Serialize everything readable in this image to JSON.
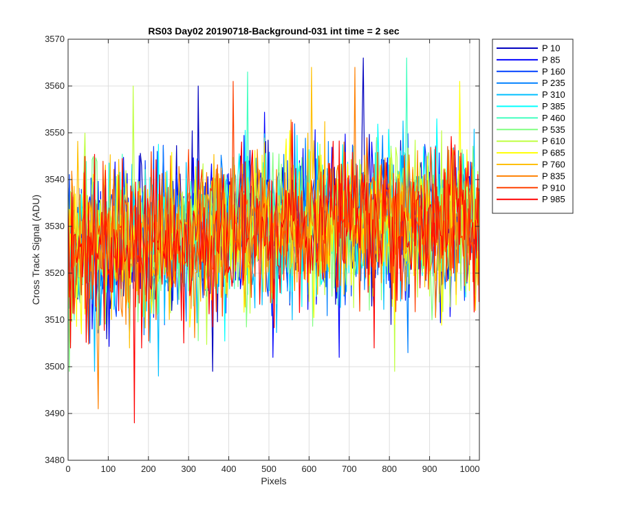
{
  "chart_data": {
    "type": "line",
    "title": "RS03 Day02 20190718-Background-031 int time = 2 sec",
    "xlabel": "Pixels",
    "ylabel": "Cross Track Signal (ADU)",
    "xlim": [
      0,
      1024
    ],
    "ylim": [
      3480,
      3570
    ],
    "xticks": [
      0,
      100,
      200,
      300,
      400,
      500,
      600,
      700,
      800,
      900,
      1000
    ],
    "yticks": [
      3480,
      3490,
      3500,
      3510,
      3520,
      3530,
      3540,
      3550,
      3560,
      3570
    ],
    "grid": true,
    "legend_position": "outside-top-right",
    "x_sampling": {
      "start": 0,
      "end": 1023,
      "step": 3
    },
    "series": [
      {
        "name": "P 10",
        "color": "#0000bf",
        "trend": [
          3525,
          3531,
          3532
        ],
        "spread": 8,
        "seed": 11,
        "extremes": [
          {
            "x": 360,
            "y": 3499
          },
          {
            "x": 325,
            "y": 3560
          },
          {
            "x": 735,
            "y": 3566
          }
        ]
      },
      {
        "name": "P 85",
        "color": "#0000ff",
        "trend": [
          3525,
          3530,
          3531
        ],
        "spread": 8,
        "seed": 23,
        "extremes": [
          {
            "x": 510,
            "y": 3502
          },
          {
            "x": 675,
            "y": 3502
          }
        ]
      },
      {
        "name": "P 160",
        "color": "#0040ff",
        "trend": [
          3526,
          3530,
          3531
        ],
        "spread": 8,
        "seed": 37,
        "extremes": [
          {
            "x": 55,
            "y": 3505
          }
        ]
      },
      {
        "name": "P 235",
        "color": "#0080ff",
        "trend": [
          3525,
          3531,
          3531
        ],
        "spread": 8,
        "seed": 41,
        "extremes": [
          {
            "x": 845,
            "y": 3503
          }
        ]
      },
      {
        "name": "P 310",
        "color": "#00bfff",
        "trend": [
          3524,
          3530,
          3531
        ],
        "spread": 8,
        "seed": 53,
        "extremes": [
          {
            "x": 225,
            "y": 3498
          },
          {
            "x": 65,
            "y": 3499
          }
        ]
      },
      {
        "name": "P 385",
        "color": "#00ffff",
        "trend": [
          3525,
          3530,
          3531
        ],
        "spread": 8,
        "seed": 67,
        "extremes": []
      },
      {
        "name": "P 460",
        "color": "#40ffbf",
        "trend": [
          3525,
          3531,
          3531
        ],
        "spread": 8,
        "seed": 71,
        "extremes": [
          {
            "x": 843,
            "y": 3566
          },
          {
            "x": 447,
            "y": 3563
          }
        ]
      },
      {
        "name": "P 535",
        "color": "#80ff80",
        "trend": [
          3524,
          3530,
          3531
        ],
        "spread": 8,
        "seed": 83,
        "extremes": [
          {
            "x": 2,
            "y": 3499
          }
        ]
      },
      {
        "name": "P 610",
        "color": "#bfff40",
        "trend": [
          3525,
          3530,
          3531
        ],
        "spread": 8,
        "seed": 97,
        "extremes": [
          {
            "x": 162,
            "y": 3560
          },
          {
            "x": 812,
            "y": 3499
          }
        ]
      },
      {
        "name": "P 685",
        "color": "#ffff00",
        "trend": [
          3524,
          3530,
          3531
        ],
        "spread": 8,
        "seed": 101,
        "extremes": [
          {
            "x": 975,
            "y": 3561
          }
        ]
      },
      {
        "name": "P 760",
        "color": "#ffbf00",
        "trend": [
          3525,
          3530,
          3531
        ],
        "spread": 8,
        "seed": 113,
        "extremes": [
          {
            "x": 605,
            "y": 3564
          }
        ]
      },
      {
        "name": "P 835",
        "color": "#ff8000",
        "trend": [
          3524,
          3530,
          3531
        ],
        "spread": 8,
        "seed": 127,
        "extremes": [
          {
            "x": 75,
            "y": 3491
          },
          {
            "x": 715,
            "y": 3564
          }
        ]
      },
      {
        "name": "P 910",
        "color": "#ff4000",
        "trend": [
          3524,
          3530,
          3531
        ],
        "spread": 8,
        "seed": 131,
        "extremes": [
          {
            "x": 410,
            "y": 3561
          }
        ]
      },
      {
        "name": "P 985",
        "color": "#ff0000",
        "trend": [
          3524,
          3530,
          3531
        ],
        "spread": 8,
        "seed": 139,
        "extremes": [
          {
            "x": 165,
            "y": 3488
          }
        ]
      }
    ]
  }
}
